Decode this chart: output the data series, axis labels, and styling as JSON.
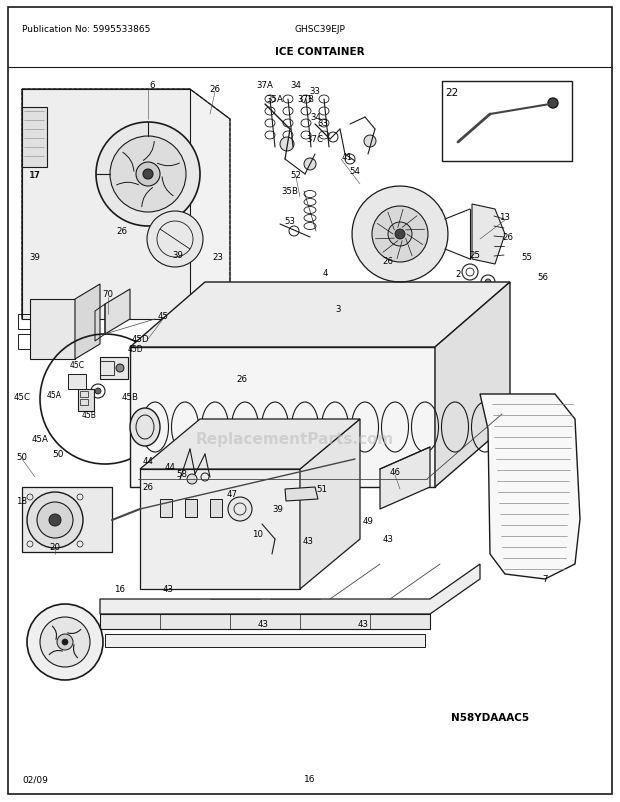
{
  "bg_color": "#ffffff",
  "border_color": "#000000",
  "pub_no": "Publication No: 5995533865",
  "model": "GHSC39EJP",
  "section": "ICE CONTAINER",
  "date": "02/09",
  "page": "16",
  "diagram_code": "N58YDAAAC5",
  "watermark": "ReplacementParts.com",
  "fig_width": 6.2,
  "fig_height": 8.03,
  "dpi": 100
}
